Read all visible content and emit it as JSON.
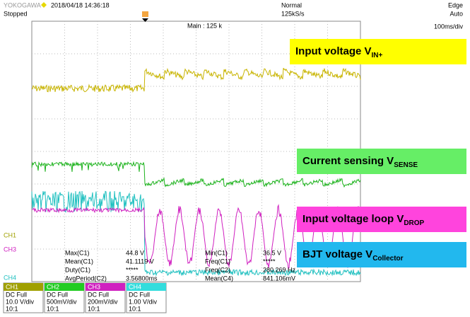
{
  "header": {
    "brand": "YOKOGAWA",
    "datetime": "2018/04/18 14:36:18",
    "status": "Stopped",
    "mode": "Normal",
    "rate": "125kS/s",
    "trigger": "Edge",
    "trigger_mode": "Auto",
    "timebase": "100ms/div",
    "main": "Main : 125 k"
  },
  "labels": [
    {
      "text": "Input voltage V",
      "sub": "IN+"
    },
    {
      "text": "Current sensing V",
      "sub": "SENSE"
    },
    {
      "text": "Input voltage loop V",
      "sub": "DROP"
    },
    {
      "text": "BJT voltage V",
      "sub": "Collector"
    }
  ],
  "markers": [
    "CH1",
    "CH3",
    "CH4"
  ],
  "measurements": [
    [
      "Max(C1)",
      "44.8 V",
      "Min(C1)",
      "36.5 V"
    ],
    [
      "Mean(C1)",
      "41.1119 V",
      "Freq(C1)",
      "*****"
    ],
    [
      "Duty(C1)",
      "*****",
      "Freq(C2)",
      "280.269 Hz"
    ],
    [
      "AvgPeriod(C2)",
      "3.56800ms",
      "Mean(C4)",
      "841.106mV"
    ]
  ],
  "channels": [
    {
      "name": "CH1",
      "coupling": "DC Full",
      "scale": "10.0 V/div",
      "probe": "10:1"
    },
    {
      "name": "CH2",
      "coupling": "DC Full",
      "scale": "500mV/div",
      "probe": "10:1"
    },
    {
      "name": "CH3",
      "coupling": "DC Full",
      "scale": "200mV/div",
      "probe": "10:1"
    },
    {
      "name": "CH4",
      "coupling": "DC Full",
      "scale": "1.00 V/div",
      "probe": "10:1"
    }
  ]
}
